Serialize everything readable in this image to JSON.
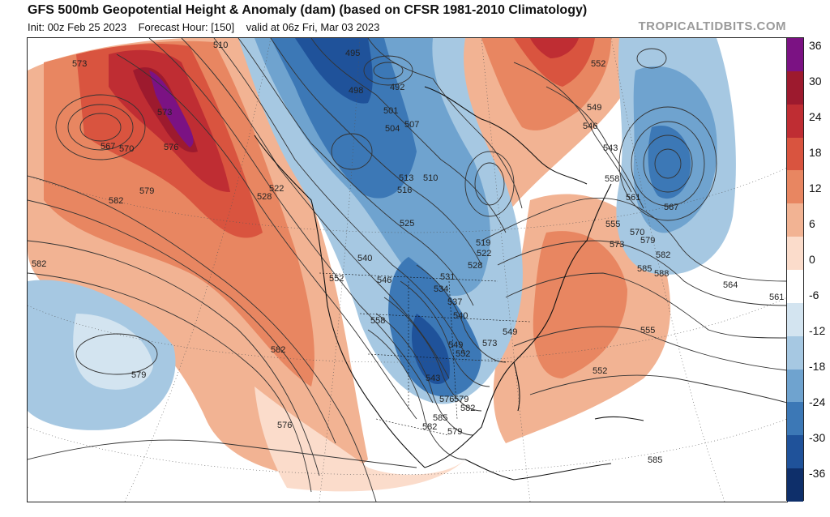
{
  "header": {
    "title": "GFS 500mb Geopotential Height & Anomaly (dam) (based on CFSR 1981-2010 Climatology)",
    "init": "Init: 00z Feb 25 2023",
    "forecast_hour": "Forecast Hour: [150]",
    "valid": "valid at 06z Fri, Mar 03 2023"
  },
  "watermark": "TROPICALTIDBITS.COM",
  "colorbar": {
    "labels": [
      "36",
      "30",
      "24",
      "18",
      "12",
      "6",
      "0",
      "-6",
      "-12",
      "-18",
      "-24",
      "-30",
      "-36"
    ],
    "colors": [
      "#7b1283",
      "#9d1a2e",
      "#bf2d33",
      "#d9543f",
      "#e88661",
      "#f2b393",
      "#fbdccb",
      "#ffffff",
      "#d3e4f0",
      "#a6c8e2",
      "#6fa3cf",
      "#3c78b6",
      "#1f529a",
      "#0e2f6a"
    ]
  },
  "map": {
    "contour_labels": [
      "573",
      "573",
      "567",
      "570",
      "576",
      "582",
      "579",
      "528",
      "522",
      "510",
      "495",
      "498",
      "492",
      "501",
      "504",
      "507",
      "513",
      "510",
      "516",
      "525",
      "519",
      "522",
      "528",
      "531",
      "534",
      "537",
      "540",
      "540",
      "546",
      "552",
      "558",
      "543",
      "549",
      "552",
      "546",
      "543",
      "549",
      "552",
      "555",
      "558",
      "561",
      "567",
      "570",
      "573",
      "579",
      "582",
      "585",
      "588",
      "564",
      "561",
      "555",
      "552",
      "549",
      "573",
      "576",
      "579",
      "582",
      "585",
      "582",
      "579",
      "576",
      "582",
      "579",
      "582",
      "585"
    ]
  }
}
